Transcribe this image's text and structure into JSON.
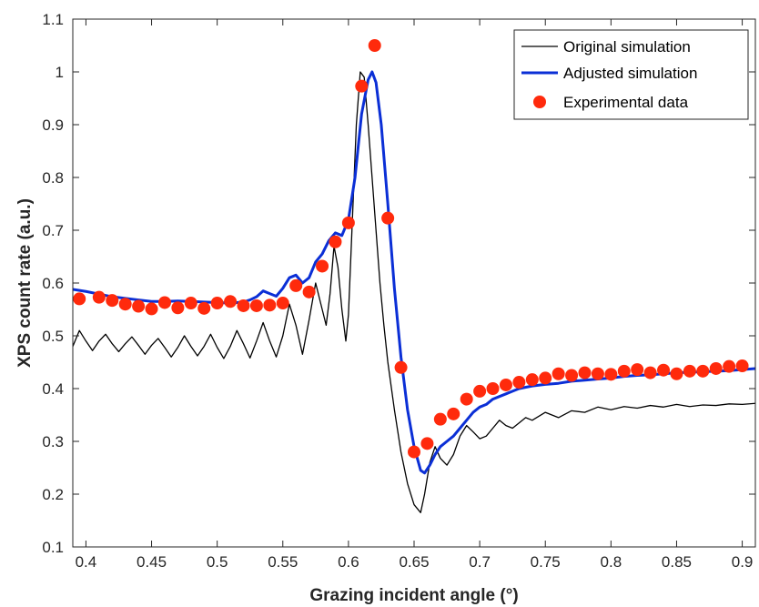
{
  "chart_data": {
    "type": "line",
    "title": "",
    "xlabel": "Grazing incident angle (°)",
    "ylabel": "XPS count rate (a.u.)",
    "xlim": [
      0.39,
      0.91
    ],
    "ylim": [
      0.1,
      1.1
    ],
    "xticks": [
      "0.4",
      "0.45",
      "0.5",
      "0.55",
      "0.6",
      "0.65",
      "0.7",
      "0.75",
      "0.8",
      "0.85",
      "0.9"
    ],
    "yticks": [
      "0.1",
      "0.2",
      "0.3",
      "0.4",
      "0.5",
      "0.6",
      "0.7",
      "0.8",
      "0.9",
      "1",
      "1.1"
    ],
    "grid": false,
    "legend_position": "top-right",
    "series": [
      {
        "name": "Original simulation",
        "style": "line",
        "color": "#000000",
        "x": [
          0.39,
          0.395,
          0.4,
          0.405,
          0.41,
          0.415,
          0.42,
          0.425,
          0.43,
          0.435,
          0.44,
          0.445,
          0.45,
          0.455,
          0.46,
          0.465,
          0.47,
          0.475,
          0.48,
          0.485,
          0.49,
          0.495,
          0.5,
          0.505,
          0.51,
          0.515,
          0.52,
          0.525,
          0.53,
          0.535,
          0.54,
          0.545,
          0.55,
          0.555,
          0.56,
          0.565,
          0.57,
          0.575,
          0.58,
          0.583,
          0.586,
          0.589,
          0.592,
          0.595,
          0.598,
          0.6,
          0.603,
          0.606,
          0.609,
          0.612,
          0.615,
          0.618,
          0.621,
          0.624,
          0.627,
          0.63,
          0.635,
          0.64,
          0.645,
          0.65,
          0.655,
          0.658,
          0.662,
          0.666,
          0.67,
          0.675,
          0.68,
          0.685,
          0.69,
          0.695,
          0.7,
          0.705,
          0.71,
          0.715,
          0.72,
          0.725,
          0.73,
          0.735,
          0.74,
          0.75,
          0.76,
          0.77,
          0.78,
          0.79,
          0.8,
          0.81,
          0.82,
          0.83,
          0.84,
          0.85,
          0.86,
          0.87,
          0.88,
          0.89,
          0.9,
          0.91
        ],
        "y": [
          0.48,
          0.51,
          0.49,
          0.472,
          0.49,
          0.503,
          0.485,
          0.47,
          0.485,
          0.498,
          0.482,
          0.465,
          0.482,
          0.495,
          0.478,
          0.46,
          0.478,
          0.5,
          0.48,
          0.462,
          0.48,
          0.503,
          0.478,
          0.457,
          0.48,
          0.51,
          0.485,
          0.458,
          0.49,
          0.525,
          0.49,
          0.46,
          0.5,
          0.56,
          0.52,
          0.465,
          0.53,
          0.6,
          0.55,
          0.52,
          0.58,
          0.67,
          0.63,
          0.55,
          0.49,
          0.54,
          0.72,
          0.9,
          1.0,
          0.99,
          0.9,
          0.8,
          0.7,
          0.6,
          0.52,
          0.45,
          0.36,
          0.28,
          0.22,
          0.18,
          0.165,
          0.2,
          0.26,
          0.29,
          0.268,
          0.255,
          0.275,
          0.31,
          0.33,
          0.318,
          0.305,
          0.31,
          0.325,
          0.34,
          0.33,
          0.325,
          0.335,
          0.345,
          0.34,
          0.355,
          0.345,
          0.358,
          0.355,
          0.365,
          0.36,
          0.366,
          0.363,
          0.368,
          0.365,
          0.37,
          0.366,
          0.369,
          0.368,
          0.371,
          0.37,
          0.372
        ]
      },
      {
        "name": "Adjusted simulation",
        "style": "line",
        "color": "#0b2fd6",
        "x": [
          0.39,
          0.4,
          0.41,
          0.42,
          0.43,
          0.44,
          0.45,
          0.46,
          0.47,
          0.48,
          0.49,
          0.5,
          0.51,
          0.52,
          0.525,
          0.53,
          0.535,
          0.54,
          0.545,
          0.55,
          0.555,
          0.56,
          0.565,
          0.57,
          0.575,
          0.58,
          0.585,
          0.59,
          0.595,
          0.6,
          0.605,
          0.61,
          0.615,
          0.618,
          0.621,
          0.625,
          0.63,
          0.635,
          0.64,
          0.645,
          0.65,
          0.655,
          0.658,
          0.662,
          0.666,
          0.67,
          0.675,
          0.68,
          0.685,
          0.69,
          0.695,
          0.7,
          0.705,
          0.71,
          0.715,
          0.72,
          0.725,
          0.73,
          0.74,
          0.75,
          0.76,
          0.77,
          0.78,
          0.79,
          0.8,
          0.81,
          0.82,
          0.83,
          0.84,
          0.85,
          0.86,
          0.87,
          0.88,
          0.89,
          0.9,
          0.91
        ],
        "y": [
          0.588,
          0.584,
          0.579,
          0.574,
          0.571,
          0.568,
          0.565,
          0.565,
          0.566,
          0.565,
          0.564,
          0.563,
          0.562,
          0.564,
          0.568,
          0.574,
          0.585,
          0.58,
          0.575,
          0.59,
          0.61,
          0.615,
          0.6,
          0.61,
          0.64,
          0.655,
          0.68,
          0.695,
          0.69,
          0.72,
          0.8,
          0.92,
          0.985,
          1.0,
          0.98,
          0.9,
          0.75,
          0.59,
          0.46,
          0.36,
          0.29,
          0.245,
          0.24,
          0.255,
          0.275,
          0.29,
          0.3,
          0.31,
          0.325,
          0.34,
          0.355,
          0.365,
          0.37,
          0.38,
          0.385,
          0.39,
          0.395,
          0.4,
          0.405,
          0.408,
          0.41,
          0.414,
          0.416,
          0.418,
          0.42,
          0.423,
          0.425,
          0.426,
          0.428,
          0.43,
          0.431,
          0.432,
          0.433,
          0.434,
          0.436,
          0.438
        ]
      },
      {
        "name": "Experimental data",
        "style": "scatter",
        "color": "#ff2a0c",
        "x": [
          0.395,
          0.41,
          0.42,
          0.43,
          0.44,
          0.45,
          0.46,
          0.47,
          0.48,
          0.49,
          0.5,
          0.51,
          0.52,
          0.53,
          0.54,
          0.55,
          0.56,
          0.57,
          0.58,
          0.59,
          0.6,
          0.61,
          0.62,
          0.63,
          0.64,
          0.65,
          0.66,
          0.67,
          0.68,
          0.69,
          0.7,
          0.71,
          0.72,
          0.73,
          0.74,
          0.75,
          0.76,
          0.77,
          0.78,
          0.79,
          0.8,
          0.81,
          0.82,
          0.83,
          0.84,
          0.85,
          0.86,
          0.87,
          0.88,
          0.89,
          0.9
        ],
        "y": [
          0.57,
          0.573,
          0.567,
          0.56,
          0.556,
          0.551,
          0.563,
          0.553,
          0.562,
          0.552,
          0.562,
          0.565,
          0.557,
          0.557,
          0.558,
          0.562,
          0.595,
          0.583,
          0.632,
          0.678,
          0.714,
          0.973,
          1.05,
          0.723,
          0.44,
          0.28,
          0.296,
          0.342,
          0.352,
          0.38,
          0.395,
          0.4,
          0.407,
          0.412,
          0.417,
          0.42,
          0.428,
          0.425,
          0.43,
          0.428,
          0.427,
          0.433,
          0.436,
          0.43,
          0.435,
          0.428,
          0.433,
          0.433,
          0.438,
          0.442,
          0.443
        ]
      }
    ]
  }
}
